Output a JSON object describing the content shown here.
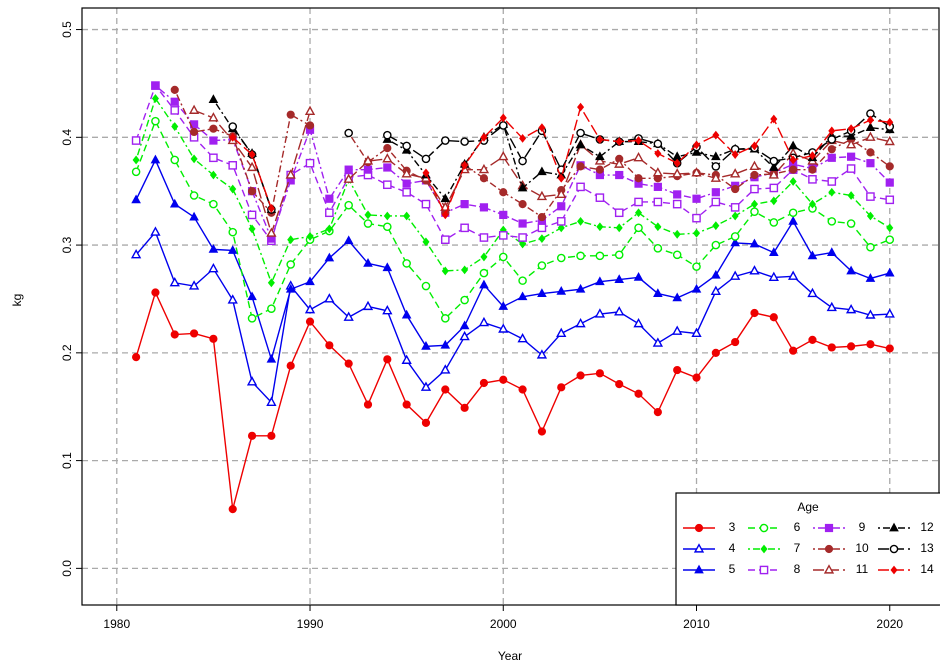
{
  "chart_data": {
    "type": "line",
    "x_label": "Year",
    "y_label": "kg",
    "legend_title": "Age",
    "legend_position": "bottom-right",
    "grid": true,
    "xlim": [
      1978.2,
      2022.6
    ],
    "ylim": [
      -0.034,
      0.52
    ],
    "xticks": [
      1980,
      1990,
      2000,
      2010,
      2020
    ],
    "yticks": [
      {
        "value": 0,
        "label": "0.0"
      },
      0.1,
      0.2,
      0.3,
      0.4,
      0.5
    ],
    "x": [
      1981,
      1982,
      1983,
      1984,
      1985,
      1986,
      1987,
      1988,
      1989,
      1990,
      1991,
      1992,
      1993,
      1994,
      1995,
      1996,
      1997,
      1998,
      1999,
      2000,
      2001,
      2002,
      2003,
      2004,
      2005,
      2006,
      2007,
      2008,
      2009,
      2010,
      2011,
      2012,
      2013,
      2014,
      2015,
      2016,
      2017,
      2018,
      2019,
      2020
    ],
    "series": [
      {
        "name": "3",
        "color": "#ee0000",
        "marker": "circle",
        "linestyle": "solid",
        "values": [
          0.196,
          0.256,
          0.217,
          0.218,
          0.213,
          0.055,
          0.123,
          0.123,
          0.188,
          0.229,
          0.207,
          0.19,
          0.152,
          0.194,
          0.152,
          0.135,
          0.166,
          0.149,
          0.172,
          0.175,
          0.166,
          0.127,
          0.168,
          0.179,
          0.181,
          0.171,
          0.162,
          0.145,
          0.184,
          0.177,
          0.2,
          0.21,
          0.237,
          0.233,
          0.202,
          0.212,
          0.205,
          0.206,
          0.208,
          0.204
        ]
      },
      {
        "name": "4",
        "color": "#0000ee",
        "marker": "triangle-open",
        "linestyle": "solid",
        "values": [
          0.291,
          0.312,
          0.265,
          0.262,
          0.278,
          0.249,
          0.173,
          0.154,
          0.262,
          0.24,
          0.25,
          0.233,
          0.243,
          0.239,
          0.193,
          0.168,
          0.184,
          0.215,
          0.228,
          0.222,
          0.213,
          0.198,
          0.218,
          0.227,
          0.236,
          0.238,
          0.227,
          0.209,
          0.22,
          0.218,
          0.257,
          0.271,
          0.276,
          0.27,
          0.271,
          0.255,
          0.242,
          0.24,
          0.235,
          0.236
        ]
      },
      {
        "name": "5",
        "color": "#0000ee",
        "marker": "triangle",
        "linestyle": "solid",
        "values": [
          0.342,
          0.379,
          0.338,
          0.326,
          0.296,
          0.295,
          0.252,
          0.194,
          0.259,
          0.266,
          0.288,
          0.304,
          0.283,
          0.279,
          0.235,
          0.206,
          0.207,
          0.225,
          0.263,
          0.243,
          0.252,
          0.255,
          0.257,
          0.259,
          0.266,
          0.268,
          0.27,
          0.255,
          0.251,
          0.259,
          0.272,
          0.302,
          0.301,
          0.293,
          0.322,
          0.29,
          0.293,
          0.276,
          0.269,
          0.274
        ]
      },
      {
        "name": "6",
        "color": "#00ee00",
        "marker": "circle-open",
        "linestyle": "dashed",
        "values": [
          0.368,
          0.415,
          0.379,
          0.346,
          0.338,
          0.312,
          0.232,
          0.241,
          0.282,
          0.305,
          0.313,
          0.337,
          0.32,
          0.317,
          0.283,
          0.262,
          0.232,
          0.249,
          0.274,
          0.289,
          0.267,
          0.281,
          0.288,
          0.29,
          0.29,
          0.291,
          0.316,
          0.297,
          0.291,
          0.28,
          0.3,
          0.308,
          0.331,
          0.321,
          0.33,
          0.334,
          0.322,
          0.32,
          0.298,
          0.305
        ]
      },
      {
        "name": "7",
        "color": "#00ee00",
        "marker": "diamond",
        "linestyle": "dotdash",
        "values": [
          0.379,
          0.436,
          0.41,
          0.38,
          0.365,
          0.352,
          0.315,
          0.265,
          0.305,
          0.308,
          0.315,
          0.361,
          0.328,
          0.327,
          0.327,
          0.303,
          0.276,
          0.277,
          0.289,
          0.314,
          0.301,
          0.306,
          0.316,
          0.322,
          0.317,
          0.316,
          0.33,
          0.317,
          0.31,
          0.311,
          0.318,
          0.327,
          0.338,
          0.341,
          0.359,
          0.338,
          0.349,
          0.346,
          0.327,
          0.316
        ]
      },
      {
        "name": "8",
        "color": "#a020f0",
        "marker": "square-open",
        "linestyle": "dashed",
        "values": [
          0.397,
          0.448,
          0.425,
          0.4,
          0.381,
          0.374,
          0.328,
          0.304,
          0.365,
          0.376,
          0.33,
          0.363,
          0.365,
          0.356,
          0.349,
          0.338,
          0.305,
          0.316,
          0.307,
          0.309,
          0.307,
          0.316,
          0.322,
          0.354,
          0.344,
          0.33,
          0.34,
          0.34,
          0.338,
          0.325,
          0.34,
          0.335,
          0.352,
          0.353,
          0.37,
          0.361,
          0.359,
          0.371,
          0.345,
          0.342
        ]
      },
      {
        "name": "9",
        "color": "#a020f0",
        "marker": "square",
        "linestyle": "dotdash",
        "values": [
          null,
          0.448,
          0.433,
          0.412,
          0.397,
          0.398,
          0.35,
          0.306,
          0.36,
          0.407,
          0.343,
          0.37,
          0.37,
          0.372,
          0.357,
          0.36,
          0.33,
          0.338,
          0.335,
          0.328,
          0.32,
          0.323,
          0.336,
          0.374,
          0.365,
          0.365,
          0.357,
          0.354,
          0.347,
          0.343,
          0.349,
          0.355,
          0.363,
          0.367,
          0.375,
          0.371,
          0.381,
          0.382,
          0.376,
          0.358
        ]
      },
      {
        "name": "10",
        "color": "#a52a2a",
        "marker": "circle",
        "linestyle": "dotdash",
        "values": [
          null,
          null,
          0.444,
          0.405,
          0.408,
          0.401,
          0.35,
          0.33,
          0.421,
          0.411,
          null,
          0.404,
          0.377,
          0.39,
          0.369,
          0.36,
          0.33,
          0.374,
          0.362,
          0.349,
          0.338,
          0.326,
          0.351,
          0.373,
          0.37,
          0.38,
          0.362,
          0.362,
          0.364,
          0.367,
          0.365,
          0.352,
          0.365,
          0.366,
          0.37,
          0.37,
          0.389,
          0.398,
          0.386,
          0.373
        ]
      },
      {
        "name": "11",
        "color": "#a52a2a",
        "marker": "triangle-open",
        "linestyle": "longdash",
        "values": [
          null,
          null,
          null,
          0.425,
          0.418,
          0.397,
          0.372,
          0.311,
          0.365,
          0.424,
          null,
          0.361,
          0.378,
          0.38,
          0.366,
          0.362,
          0.335,
          0.37,
          0.37,
          0.382,
          0.355,
          0.345,
          0.347,
          0.393,
          0.378,
          0.375,
          0.381,
          0.367,
          0.366,
          0.367,
          0.362,
          0.366,
          0.373,
          0.365,
          0.385,
          0.378,
          0.397,
          0.393,
          0.4,
          0.396
        ]
      },
      {
        "name": "12",
        "color": "#000000",
        "marker": "triangle",
        "linestyle": "dotdash",
        "values": [
          null,
          null,
          null,
          null,
          0.435,
          0.408,
          0.385,
          0.333,
          null,
          null,
          null,
          null,
          null,
          0.398,
          0.388,
          0.365,
          0.343,
          0.375,
          0.4,
          0.412,
          0.353,
          0.368,
          0.365,
          0.393,
          0.382,
          0.396,
          0.396,
          0.394,
          0.382,
          0.386,
          0.382,
          0.389,
          0.389,
          0.372,
          0.392,
          0.381,
          0.401,
          0.401,
          0.409,
          0.407
        ]
      },
      {
        "name": "13",
        "color": "#000000",
        "marker": "circle-open",
        "linestyle": "longdash",
        "values": [
          null,
          null,
          null,
          null,
          null,
          0.41,
          0.384,
          0.333,
          null,
          null,
          null,
          0.404,
          null,
          0.402,
          0.392,
          0.38,
          0.397,
          0.396,
          0.397,
          0.411,
          0.378,
          0.406,
          0.37,
          0.404,
          0.398,
          0.396,
          0.399,
          0.394,
          0.376,
          0.391,
          0.373,
          0.389,
          0.39,
          0.378,
          0.381,
          0.386,
          0.398,
          0.406,
          0.422,
          0.41
        ]
      },
      {
        "name": "14",
        "color": "#ee0000",
        "marker": "diamond",
        "linestyle": "longdash",
        "values": [
          null,
          null,
          null,
          null,
          null,
          0.4,
          0.384,
          0.334,
          null,
          null,
          null,
          null,
          null,
          null,
          null,
          0.367,
          0.328,
          0.374,
          0.4,
          0.418,
          0.399,
          0.409,
          0.362,
          0.428,
          0.398,
          0.396,
          0.397,
          0.385,
          0.376,
          0.393,
          0.402,
          0.384,
          0.392,
          0.417,
          0.379,
          0.383,
          0.406,
          0.408,
          0.416,
          0.414
        ]
      }
    ]
  }
}
